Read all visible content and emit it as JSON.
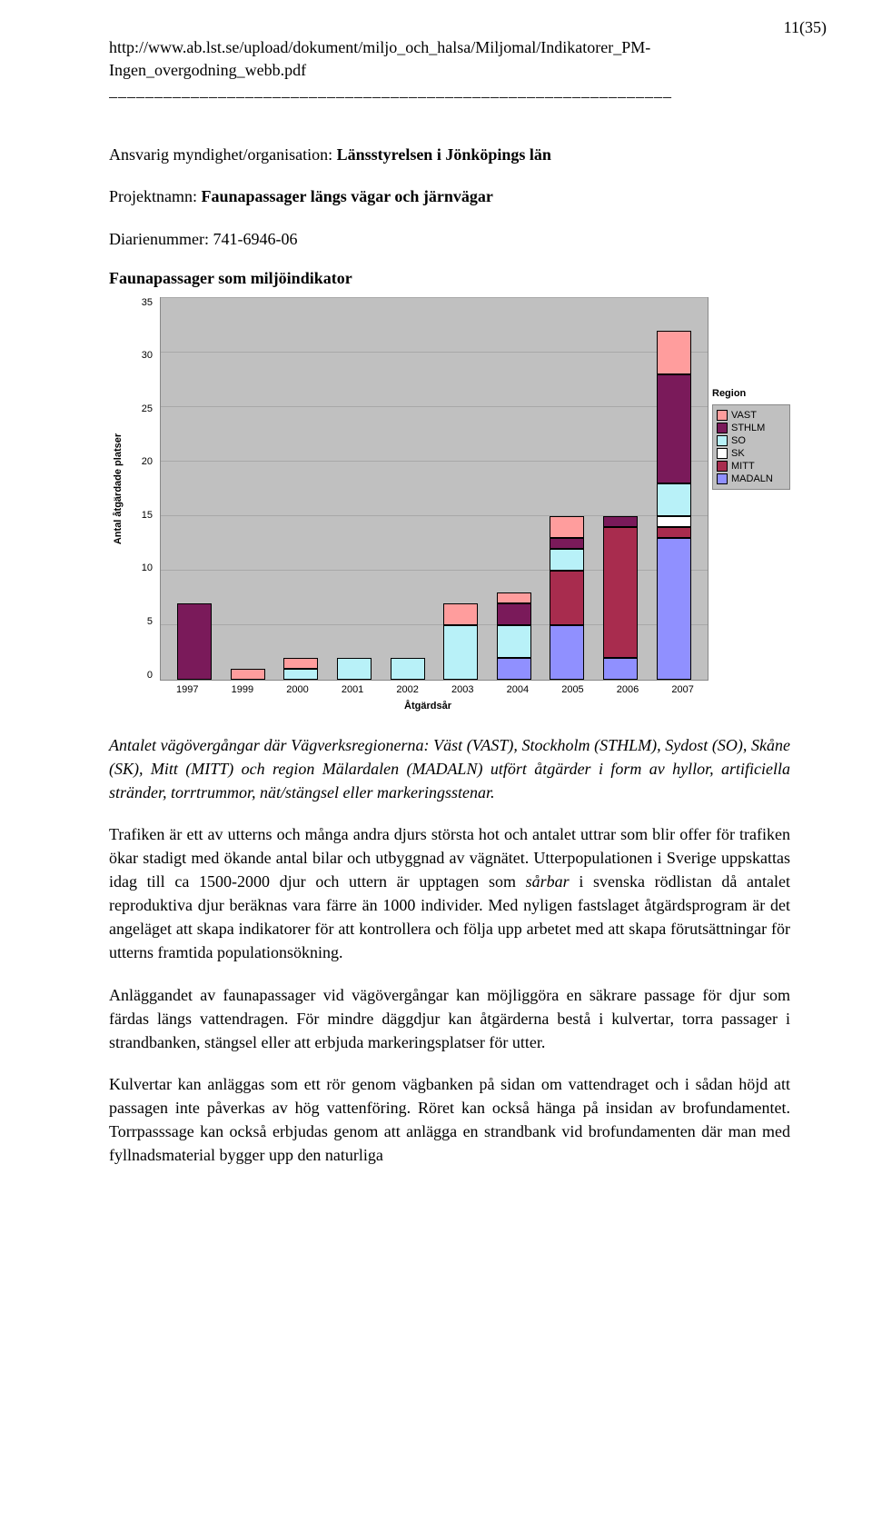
{
  "page_number": "11(35)",
  "url_text": "http://www.ab.lst.se/upload/dokument/miljo_och_halsa/Miljomal/Indikatorer_PM-Ingen_overgodning_webb.pdf",
  "divider": "––––––––––––––––––––––––––––––––––––––––––––––––––––––––––––––",
  "authority_label": "Ansvarig myndighet/organisation:",
  "authority_value": "Länsstyrelsen i Jönköpings län",
  "project_label": "Projektnamn:",
  "project_value": "Faunapassager längs vägar och järnvägar",
  "diarie_line": "Diarienummer: 741-6946-06",
  "chart": {
    "title": "Faunapassager som miljöindikator",
    "ylabel": "Antal åtgärdade platser",
    "xlabel": "Åtgärdsår",
    "ymax": 35,
    "ytick_step": 5,
    "yticks": [
      "35",
      "30",
      "25",
      "20",
      "15",
      "10",
      "5",
      "0"
    ],
    "categories": [
      "1997",
      "1999",
      "2000",
      "2001",
      "2002",
      "2003",
      "2004",
      "2005",
      "2006",
      "2007"
    ],
    "series_order": [
      "MADALN",
      "MITT",
      "SK",
      "SO",
      "STHLM",
      "VAST"
    ],
    "colors": {
      "VAST": "#ff9d9d",
      "STHLM": "#7a1a5a",
      "SO": "#b8f1f8",
      "SK": "#ffffff",
      "MITT": "#a82c4e",
      "MADALN": "#9090ff"
    },
    "legend_title": "Region",
    "legend": [
      "VAST",
      "STHLM",
      "SO",
      "SK",
      "MITT",
      "MADALN"
    ],
    "data": {
      "1997": {
        "STHLM": 7
      },
      "1999": {
        "VAST": 1
      },
      "2000": {
        "SO": 1,
        "VAST": 1
      },
      "2001": {
        "SO": 2
      },
      "2002": {
        "SO": 2
      },
      "2003": {
        "SO": 5,
        "VAST": 2
      },
      "2004": {
        "MADALN": 2,
        "SO": 3,
        "STHLM": 2,
        "VAST": 1
      },
      "2005": {
        "MADALN": 5,
        "MITT": 5,
        "SO": 2,
        "STHLM": 1,
        "VAST": 2
      },
      "2006": {
        "MADALN": 2,
        "MITT": 12,
        "STHLM": 1
      },
      "2007": {
        "MADALN": 13,
        "MITT": 1,
        "SK": 1,
        "SO": 3,
        "STHLM": 10,
        "VAST": 4
      }
    },
    "bg_color": "#c0c0c0",
    "grid_color": "#a8a8a8"
  },
  "caption": "Antalet vägövergångar där Vägverksregionerna: Väst (VAST), Stockholm (STHLM), Sydost (SO), Skåne (SK), Mitt (MITT) och region Mälardalen (MADALN) utfört åtgärder i form av hyllor, artificiella stränder, torrtrummor, nät/stängsel eller markeringsstenar.",
  "para1_a": "Trafiken är ett av utterns och många andra djurs största hot och antalet uttrar som blir offer för trafiken ökar stadigt med ökande antal bilar och utbyggnad av vägnätet. Utterpopulationen i Sverige uppskattas idag till ca 1500-2000 djur och uttern är upptagen som ",
  "para1_sarbar": "sårbar",
  "para1_b": " i svenska rödlistan då antalet reproduktiva djur beräknas vara färre än 1000 individer. Med nyligen fastslaget åtgärdsprogram är det angeläget att skapa indikatorer för att kontrollera och följa upp arbetet med att skapa förutsättningar för utterns framtida populationsökning.",
  "para2": "Anläggandet av faunapassager vid vägövergångar kan möjliggöra en säkrare passage för djur som färdas längs vattendragen. För mindre däggdjur kan åtgärderna bestå i kulvertar, torra passager i strandbanken, stängsel eller att erbjuda markeringsplatser för utter.",
  "para3": "Kulvertar kan anläggas som ett rör genom vägbanken på sidan om vattendraget och i sådan höjd att passagen inte påverkas av hög vattenföring. Röret kan också hänga på insidan av brofundamentet. Torrpasssage kan också erbjudas genom att anlägga en strandbank vid brofundamenten där man med fyllnadsmaterial bygger upp den naturliga"
}
